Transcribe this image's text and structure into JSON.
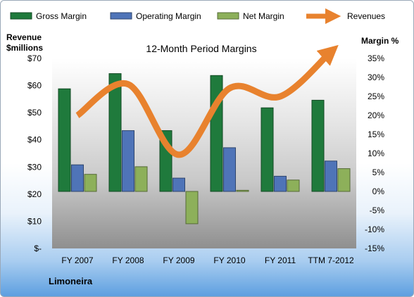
{
  "chart_data": {
    "type": "bar",
    "title": "12-Month Period Margins",
    "categories": [
      "FY 2007",
      "FY 2008",
      "FY 2009",
      "FY 2010",
      "FY 2011",
      "TTM 7-2012"
    ],
    "series": [
      {
        "name": "Gross Margin",
        "kind": "bar",
        "axis": "right",
        "color": "#1f7a3c",
        "values": [
          27,
          31,
          16,
          30.5,
          22,
          24
        ]
      },
      {
        "name": "Operating Margin",
        "kind": "bar",
        "axis": "right",
        "color": "#4f74b8",
        "values": [
          7,
          16,
          3.5,
          11.5,
          4,
          8
        ]
      },
      {
        "name": "Net Margin",
        "kind": "bar",
        "axis": "right",
        "color": "#8db05a",
        "values": [
          4.5,
          6.5,
          -8.5,
          0.3,
          3,
          6
        ]
      },
      {
        "name": "Revenues",
        "kind": "line",
        "axis": "left",
        "color": "#e8822e",
        "values": [
          49,
          60.5,
          34.5,
          59,
          56,
          72.5
        ]
      }
    ],
    "left_axis": {
      "label_line1": "Revenue",
      "label_line2": "$millions",
      "ylim": [
        0,
        70
      ],
      "ticks": [
        "$-",
        "$10",
        "$20",
        "$30",
        "$40",
        "$50",
        "$60",
        "$70"
      ]
    },
    "right_axis": {
      "label": "Margin %",
      "ylim": [
        -15,
        35
      ],
      "ticks": [
        "-15%",
        "-10%",
        "-5%",
        "0%",
        "5%",
        "10%",
        "15%",
        "20%",
        "25%",
        "30%",
        "35%"
      ]
    },
    "grid": false,
    "legend_position": "top",
    "company": "Limoneira"
  }
}
